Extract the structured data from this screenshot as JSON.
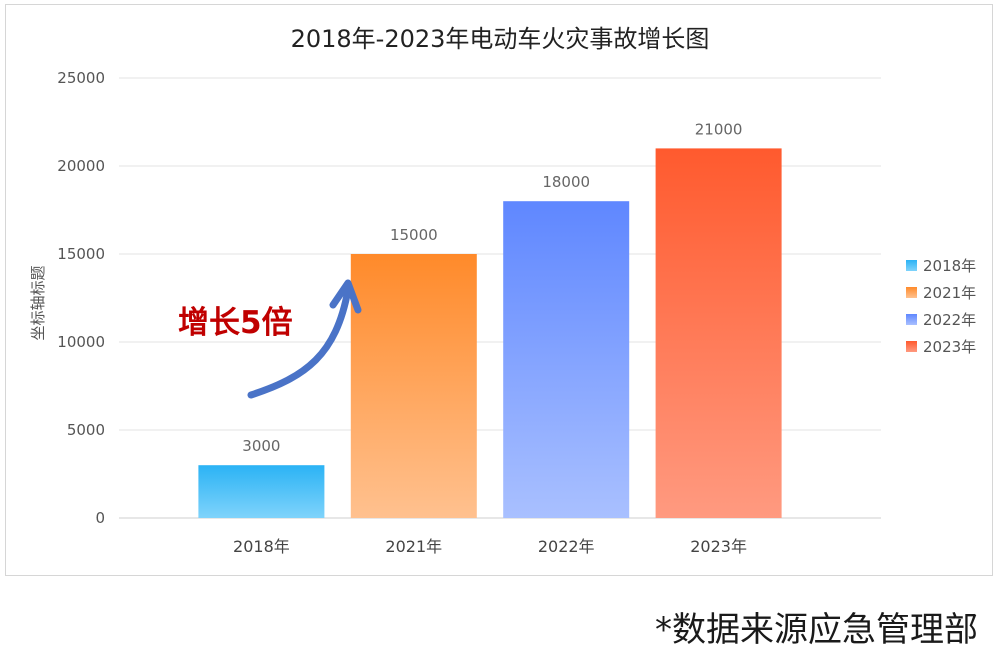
{
  "chart_data": {
    "type": "bar",
    "title": "2018年-2023年电动车火灾事故增长图",
    "xlabel": "",
    "ylabel": "坐标轴标题",
    "categories": [
      "2018年",
      "2021年",
      "2022年",
      "2023年"
    ],
    "values": [
      3000,
      15000,
      18000,
      21000
    ],
    "data_labels": [
      "3000",
      "15000",
      "18000",
      "21000"
    ],
    "ylim": [
      0,
      25000
    ],
    "yticks": [
      0,
      5000,
      10000,
      15000,
      20000,
      25000
    ],
    "grid": true,
    "legend_position": "right",
    "legend": [
      "2018年",
      "2021年",
      "2022年",
      "2023年"
    ],
    "colors": [
      {
        "top": "#2bb3f5",
        "bottom": "#7fd3fb"
      },
      {
        "top": "#ff8a2a",
        "bottom": "#ffc18f"
      },
      {
        "top": "#5f87ff",
        "bottom": "#a9c0ff"
      },
      {
        "top": "#ff5a2e",
        "bottom": "#ff9a80"
      }
    ],
    "annotation": {
      "text": "增长5倍",
      "text_color": "#c00000",
      "arrow_color": "#4a73c7"
    }
  },
  "footer": {
    "source_note": "*数据来源应急管理部"
  }
}
